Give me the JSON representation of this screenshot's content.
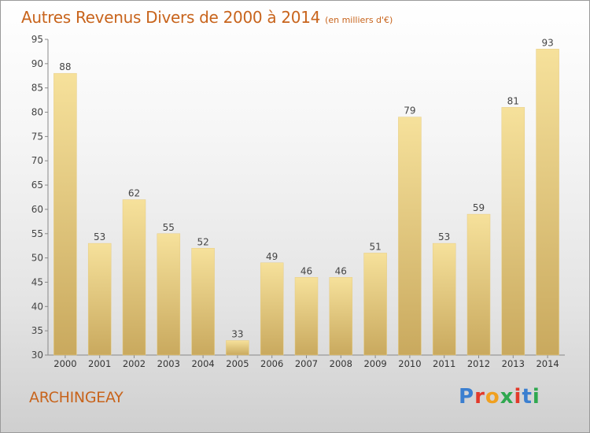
{
  "header": {
    "title": "Autres Revenus Divers de 2000 à 2014",
    "unit": "(en milliers d'€)"
  },
  "footer": {
    "commune": "ARCHINGEAY",
    "logo": "Proxiti",
    "logo_colors": [
      "#3b7fd0",
      "#e2392a",
      "#f0a020",
      "#2fa84f",
      "#e2392a",
      "#3b7fd0",
      "#2fa84f"
    ]
  },
  "colors": {
    "bar": "#e6cc84",
    "bar_light": "#f6e19b",
    "bar_dark": "#c9a95e",
    "text": "#c8641c"
  },
  "chart_data": {
    "type": "bar",
    "title": "Autres Revenus Divers de 2000 à 2014",
    "subtitle": "(en milliers d'€)",
    "categories": [
      "2000",
      "2001",
      "2002",
      "2003",
      "2004",
      "2005",
      "2006",
      "2007",
      "2008",
      "2009",
      "2010",
      "2011",
      "2012",
      "2013",
      "2014"
    ],
    "values": [
      88,
      53,
      62,
      55,
      52,
      33,
      49,
      46,
      46,
      51,
      79,
      53,
      59,
      81,
      93
    ],
    "ylim": [
      30,
      95
    ],
    "yticks": [
      30,
      35,
      40,
      45,
      50,
      55,
      60,
      65,
      70,
      75,
      80,
      85,
      90,
      95
    ],
    "grid": false,
    "data_labels": true
  }
}
